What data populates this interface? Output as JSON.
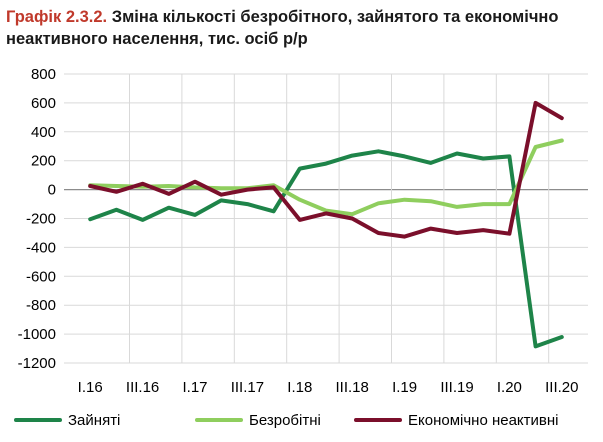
{
  "title": {
    "lead": "Графік 2.3.2.",
    "text": "Зміна кількості безробітного, зайнятого та економічно неактивного населення, тис. осіб р/р"
  },
  "chart_data": {
    "type": "line",
    "ylim": [
      -1200,
      800
    ],
    "yticks": [
      800,
      600,
      400,
      200,
      0,
      -200,
      -400,
      -600,
      -800,
      -1000,
      -1200
    ],
    "grid": true,
    "legend_position": "bottom",
    "x": [
      "I.16",
      "II.16",
      "III.16",
      "IV.16",
      "I.17",
      "II.17",
      "III.17",
      "IV.17",
      "I.18",
      "II.18",
      "III.18",
      "IV.18",
      "I.19",
      "II.19",
      "III.19",
      "IV.19",
      "I.20",
      "II.20",
      "III.20"
    ],
    "xtick_labels": [
      "I.16",
      "III.16",
      "I.17",
      "III.17",
      "I.18",
      "III.18",
      "I.19",
      "III.19",
      "I.20",
      "III.20"
    ],
    "series": [
      {
        "name": "Зайняті",
        "color": "#1e8449",
        "values": [
          -205,
          -140,
          -210,
          -125,
          -175,
          -75,
          -100,
          -150,
          145,
          180,
          235,
          265,
          230,
          185,
          250,
          215,
          230,
          -1085,
          -1020
        ]
      },
      {
        "name": "Безробітні",
        "color": "#8fce5e",
        "values": [
          30,
          25,
          20,
          25,
          15,
          10,
          10,
          30,
          -70,
          -145,
          -170,
          -95,
          -70,
          -80,
          -120,
          -100,
          -100,
          295,
          340
        ]
      },
      {
        "name": "Економічно неактивні",
        "color": "#7b0f2b",
        "values": [
          25,
          -15,
          40,
          -30,
          55,
          -35,
          0,
          15,
          -210,
          -165,
          -200,
          -300,
          -325,
          -270,
          -300,
          -280,
          -305,
          600,
          495
        ]
      }
    ]
  }
}
